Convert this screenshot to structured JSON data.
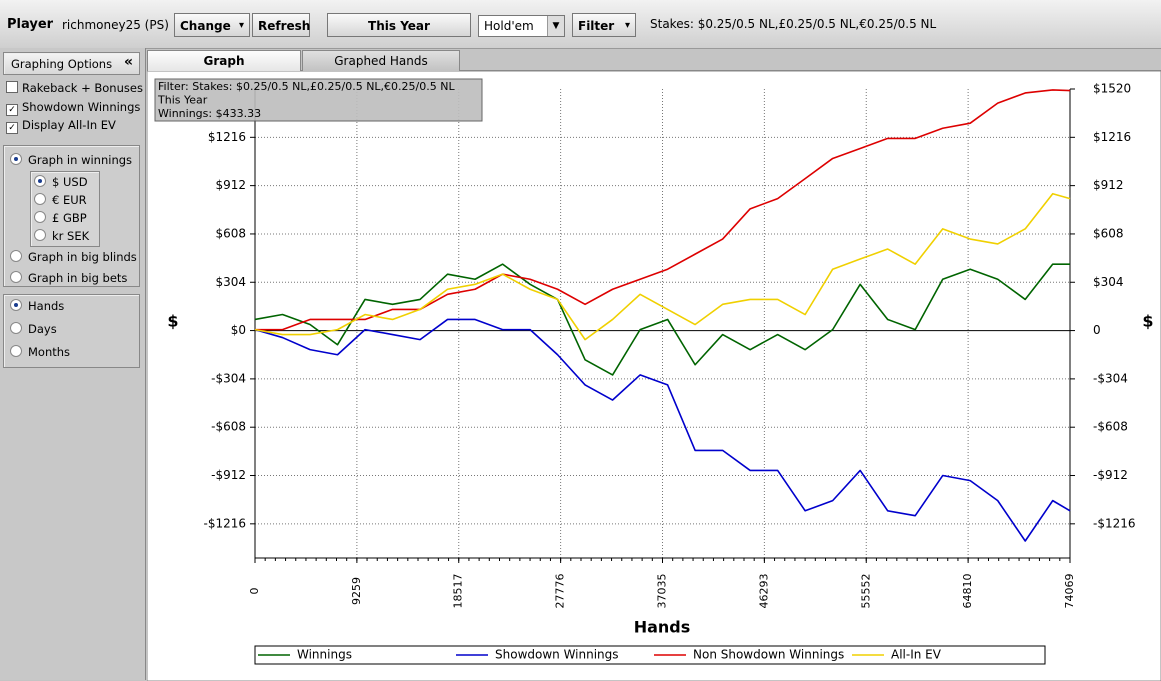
{
  "toolbar": {
    "player_label": "Player",
    "player": "richmoney25 (PS)",
    "buttons": [
      "Change",
      "Refresh"
    ],
    "period": "This Year",
    "game": "Hold'em",
    "filter": "Filter",
    "stakes": "Stakes: $0.25/0.5 NL,£0.25/0.5 NL,€0.25/0.5 NL"
  },
  "sidebar": {
    "title": "Graphing Options",
    "collapse": "«",
    "checkboxes": [
      {
        "label": "Rakeback + Bonuses",
        "checked": false
      },
      {
        "label": "Showdown Winnings",
        "checked": true
      },
      {
        "label": "Display All-In EV",
        "checked": true
      }
    ],
    "modes": [
      {
        "label": "Graph in winnings",
        "selected": true
      },
      {
        "label": "Graph in big blinds",
        "selected": false
      },
      {
        "label": "Graph in big bets",
        "selected": false
      }
    ],
    "currencies": [
      {
        "label": "$ USD",
        "selected": true
      },
      {
        "label": "€ EUR",
        "selected": false
      },
      {
        "label": "£ GBP",
        "selected": false
      },
      {
        "label": "kr SEK",
        "selected": false
      }
    ],
    "periods": [
      {
        "label": "Hands",
        "selected": true
      },
      {
        "label": "Days",
        "selected": false
      },
      {
        "label": "Months",
        "selected": false
      }
    ]
  },
  "tabs": [
    {
      "label": "Graph",
      "active": true
    },
    {
      "label": "Graphed Hands",
      "active": false
    }
  ],
  "chart_data": {
    "type": "line",
    "info": [
      "Filter: Stakes: $0.25/0.5 NL,£0.25/0.5 NL,€0.25/0.5 NL",
      "This Year",
      "Winnings: $433.33"
    ],
    "xlabel": "Hands",
    "ylabel": "$",
    "y2label": "$",
    "x": [
      0,
      2500,
      5000,
      7500,
      10000,
      12500,
      15000,
      17500,
      20000,
      22500,
      25000,
      27500,
      30000,
      32500,
      35000,
      37500,
      40000,
      42500,
      45000,
      47500,
      50000,
      52500,
      55000,
      57500,
      60000,
      62500,
      65000,
      67500,
      70000,
      72500,
      74069
    ],
    "series": [
      {
        "name": "Winnings",
        "color": "#006400",
        "values": [
          70,
          101,
          38,
          -89,
          196,
          165,
          196,
          355,
          323,
          418,
          291,
          196,
          -184,
          -279,
          6,
          70,
          -215,
          -25,
          -120,
          -25,
          -120,
          6,
          291,
          70,
          6,
          323,
          386,
          323,
          196,
          418,
          418
        ]
      },
      {
        "name": "Showdown Winnings",
        "color": "#0000cc",
        "values": [
          6,
          -44,
          -120,
          -152,
          6,
          -25,
          -57,
          70,
          70,
          6,
          6,
          -152,
          -342,
          -437,
          -279,
          -342,
          -754,
          -754,
          -880,
          -880,
          -1134,
          -1070,
          -880,
          -1134,
          -1165,
          -912,
          -944,
          -1070,
          -1324,
          -1070,
          -1134
        ]
      },
      {
        "name": "Non Showdown Winnings",
        "color": "#dd0000",
        "values": [
          6,
          6,
          70,
          70,
          70,
          133,
          133,
          228,
          260,
          355,
          323,
          260,
          165,
          260,
          323,
          386,
          481,
          576,
          766,
          830,
          956,
          1083,
          1146,
          1209,
          1209,
          1273,
          1305,
          1431,
          1495,
          1514,
          1510
        ]
      },
      {
        "name": "All-In EV",
        "color": "#f0d000",
        "values": [
          6,
          -25,
          -25,
          6,
          101,
          70,
          133,
          260,
          291,
          355,
          260,
          196,
          -57,
          70,
          228,
          133,
          38,
          165,
          196,
          196,
          101,
          386,
          450,
          513,
          418,
          640,
          576,
          545,
          640,
          861,
          830
        ]
      }
    ],
    "xlim": [
      0,
      74069
    ],
    "xticks": [
      0,
      9259,
      18517,
      27776,
      37035,
      46293,
      55552,
      64810,
      74069
    ],
    "ylim": [
      -1431,
      1520
    ],
    "yticks": [
      {
        "value": -1216,
        "label": "-$1216"
      },
      {
        "value": -912,
        "label": "-$912"
      },
      {
        "value": -608,
        "label": "-$608"
      },
      {
        "value": -304,
        "label": "-$304"
      },
      {
        "value": 0,
        "label": "$0"
      },
      {
        "value": 304,
        "label": "$304"
      },
      {
        "value": 608,
        "label": "$608"
      },
      {
        "value": 912,
        "label": "$912"
      },
      {
        "value": 1216,
        "label": "$1216"
      }
    ],
    "y2lim": [
      -1431,
      1520
    ],
    "y2ticks": [
      {
        "value": -1216,
        "label": "-$1216"
      },
      {
        "value": -912,
        "label": "-$912"
      },
      {
        "value": -608,
        "label": "-$608"
      },
      {
        "value": -304,
        "label": "-$304"
      },
      0,
      {
        "value": 304,
        "label": "$304"
      },
      {
        "value": 608,
        "label": "$608"
      },
      {
        "value": 912,
        "label": "$912"
      },
      {
        "value": 1216,
        "label": "$1216"
      },
      {
        "value": 1520,
        "label": "$1520"
      }
    ],
    "grid": true
  }
}
